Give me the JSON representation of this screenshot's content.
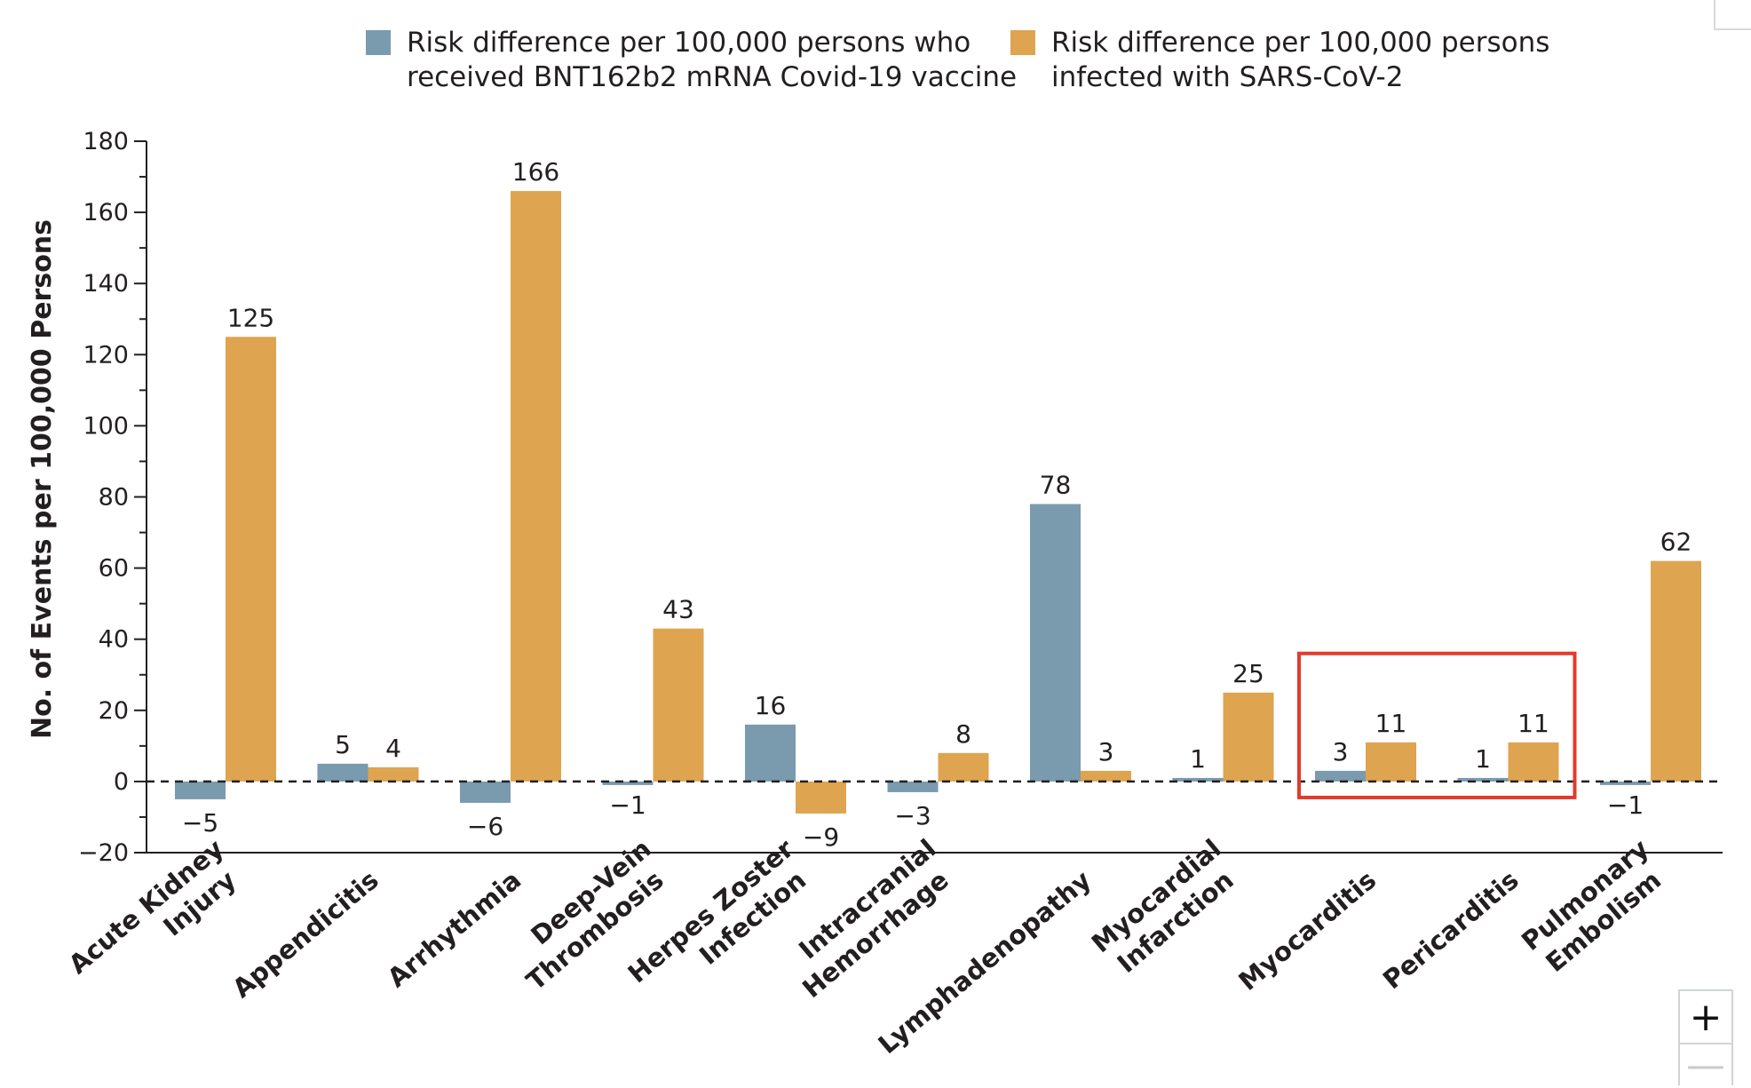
{
  "legend": [
    {
      "line1": "Risk difference per 100,000 persons who",
      "line2": "received BNT162b2 mRNA Covid-19 vaccine",
      "color": "#7a9aae"
    },
    {
      "line1": "Risk difference per 100,000 persons",
      "line2": "infected with SARS-CoV-2",
      "color": "#dfa450"
    }
  ],
  "controls": {
    "zoom_in": "+",
    "zoom_out": "—"
  },
  "highlight_color": "#e33a2c",
  "chart_data": {
    "type": "bar",
    "ylabel": "No. of Events per 100,000 Persons",
    "xlabel": "",
    "ylim": [
      -20,
      180
    ],
    "yticks": [
      -20,
      0,
      20,
      40,
      60,
      80,
      100,
      120,
      140,
      160,
      180
    ],
    "ytick_labels": [
      "−20",
      "0",
      "20",
      "40",
      "60",
      "80",
      "100",
      "120",
      "140",
      "160",
      "180"
    ],
    "categories": [
      [
        "Acute Kidney",
        "Injury"
      ],
      [
        "Appendicitis"
      ],
      [
        "Arrhythmia"
      ],
      [
        "Deep-Vein",
        "Thrombosis"
      ],
      [
        "Herpes Zoster",
        "Infection"
      ],
      [
        "Intracranial",
        "Hemorrhage"
      ],
      [
        "Lymphadenopathy"
      ],
      [
        "Myocardial",
        "Infarction"
      ],
      [
        "Myocarditis"
      ],
      [
        "Pericarditis"
      ],
      [
        "Pulmonary",
        "Embolism"
      ]
    ],
    "series": [
      {
        "name": "Risk difference per 100,000 persons who received BNT162b2 mRNA Covid-19 vaccine",
        "color": "#7a9aae",
        "values": [
          -5,
          5,
          -6,
          -1,
          16,
          -3,
          78,
          1,
          3,
          1,
          -1
        ],
        "labels": [
          "−5",
          "5",
          "−6",
          "−1",
          "16",
          "−3",
          "78",
          "1",
          "3",
          "1",
          "−1"
        ]
      },
      {
        "name": "Risk difference per 100,000 persons infected with SARS-CoV-2",
        "color": "#dfa450",
        "values": [
          125,
          4,
          166,
          43,
          -9,
          8,
          3,
          25,
          11,
          11,
          62
        ],
        "labels": [
          "125",
          "4",
          "166",
          "43",
          "−9",
          "8",
          "3",
          "25",
          "11",
          "11",
          "62"
        ]
      }
    ],
    "zero_line": "dashed",
    "grid": false,
    "legend_position": "top",
    "highlighted_categories": [
      "Myocarditis",
      "Pericarditis"
    ]
  }
}
